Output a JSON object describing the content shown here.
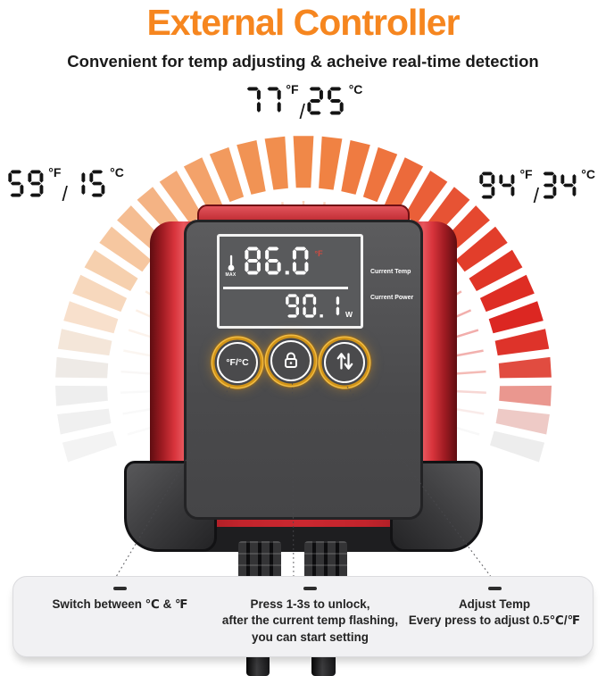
{
  "header": {
    "title": "External Controller",
    "subtitle": "Convenient for temp adjusting & acheive real-time detection"
  },
  "gauge": {
    "segments": 33,
    "start_deg": -106,
    "end_deg": 106,
    "color_stops": [
      {
        "t": 0.0,
        "c": "#f3f3f3"
      },
      {
        "t": 0.08,
        "c": "#ececec"
      },
      {
        "t": 0.15,
        "c": "#f8e2cf"
      },
      {
        "t": 0.23,
        "c": "#f6cda9"
      },
      {
        "t": 0.33,
        "c": "#f4ad7c"
      },
      {
        "t": 0.43,
        "c": "#f19455"
      },
      {
        "t": 0.52,
        "c": "#f08544"
      },
      {
        "t": 0.6,
        "c": "#ee733e"
      },
      {
        "t": 0.68,
        "c": "#e85635"
      },
      {
        "t": 0.76,
        "c": "#e13a29"
      },
      {
        "t": 0.84,
        "c": "#dc2621"
      },
      {
        "t": 0.9,
        "c": "#df3d30"
      },
      {
        "t": 0.95,
        "c": "#eeb5ae"
      },
      {
        "t": 1.0,
        "c": "#ededed"
      }
    ],
    "labels": {
      "low": {
        "f_value": "59",
        "f_unit": "°F",
        "separator": "/",
        "c_value": "15",
        "c_unit": "°C"
      },
      "mid": {
        "f_value": "77",
        "f_unit": "°F",
        "separator": "/",
        "c_value": "25",
        "c_unit": "°C"
      },
      "high": {
        "f_value": "94",
        "f_unit": "°F",
        "separator": "/",
        "c_value": "34",
        "c_unit": "°C"
      }
    }
  },
  "device": {
    "display": {
      "current_temp": "86.0",
      "temp_unit": "°F",
      "max_label": "MAX",
      "current_power": "90.1",
      "power_unit": "W",
      "temp_caption": "Current Temp",
      "power_caption": "Current Power"
    },
    "buttons": {
      "unit_toggle_label": "°F/°C"
    }
  },
  "notes": [
    {
      "lines": [
        "Switch between ℃ & ℉"
      ]
    },
    {
      "lines": [
        "Press 1-3s to unlock,",
        "after the current temp flashing,",
        "you can start setting"
      ]
    },
    {
      "lines": [
        "Adjust Temp",
        "Every press to adjust 0.5℃/℉"
      ]
    }
  ],
  "colors": {
    "accent_orange": "#F6861F",
    "device_red": "#C2242C",
    "front_panel_gray": "#4A4A4C",
    "button_ring_gold": "#D29418",
    "gauge_red": "#DC2621",
    "gauge_orange": "#F08544",
    "note_panel_bg": "#F1F1F3",
    "lcd_digit_white": "#FFFFFF",
    "lcd_unit_red": "#D24B41"
  }
}
